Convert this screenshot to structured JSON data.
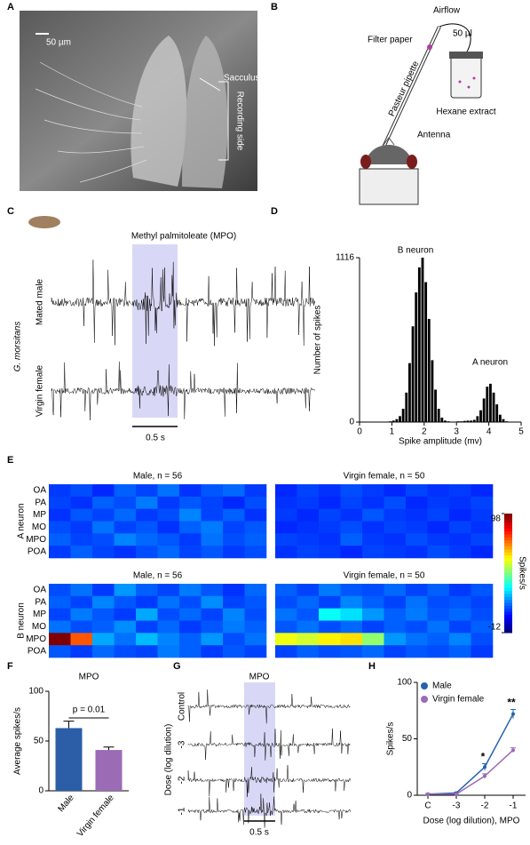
{
  "panel_labels": [
    "A",
    "B",
    "C",
    "D",
    "E",
    "F",
    "G",
    "H"
  ],
  "panel_a": {
    "scale_bar": "50 µm",
    "sacculus": "Sacculus",
    "recording_side": "Recording side"
  },
  "panel_b": {
    "airflow": "Airflow",
    "filter_paper": "Filter paper",
    "volume": "50 µl",
    "pipette": "Pasteur pipette",
    "extract": "Hexane extract",
    "antenna": "Antenna"
  },
  "panel_c": {
    "species": "G. morsitans",
    "stimulus": "Methyl palmitoleate (MPO)",
    "traces": [
      "Mated male",
      "Virgin female"
    ],
    "scale": "0.5 s"
  },
  "panel_g": {
    "stimulus": "MPO",
    "axis_label": "Dose (log dilution)",
    "traces": [
      "Control",
      "-3",
      "-2",
      "-1"
    ],
    "scale": "0.5 s"
  },
  "chart_data": [
    {
      "type": "histogram",
      "bins": [
        0.9,
        1.0,
        1.1,
        1.2,
        1.3,
        1.4,
        1.5,
        1.6,
        1.7,
        1.8,
        1.9,
        2.0,
        2.1,
        2.2,
        2.3,
        2.4,
        2.5,
        2.6,
        2.7,
        2.8,
        2.9,
        3.0,
        3.1,
        3.2,
        3.3,
        3.4,
        3.5,
        3.6,
        3.7,
        3.8,
        3.9,
        4.0,
        4.1,
        4.2,
        4.3,
        4.4,
        4.5,
        4.6
      ],
      "values": [
        5,
        10,
        20,
        40,
        90,
        200,
        400,
        650,
        880,
        1050,
        1116,
        950,
        700,
        420,
        220,
        90,
        30,
        10,
        5,
        3,
        3,
        5,
        5,
        8,
        10,
        10,
        15,
        40,
        80,
        160,
        240,
        260,
        200,
        120,
        50,
        20,
        5
      ],
      "color": "#000000",
      "xlim": [
        0,
        5
      ],
      "xticks": [
        0,
        1,
        2,
        3,
        4,
        5
      ],
      "ylim": [
        0,
        1116
      ],
      "yticks": [
        0,
        1116
      ],
      "xlabel": "Spike amplitude (mv)",
      "ylabel": "Number of spikes",
      "annotations": [
        "B neuron",
        "A neuron"
      ]
    },
    {
      "type": "heatmap",
      "row_labels": [
        "OA",
        "PA",
        "MP",
        "MO",
        "MPO",
        "POA"
      ],
      "neuron_labels": [
        "A neuron",
        "B neuron"
      ],
      "zlim": [
        -12,
        98
      ],
      "zticks": [
        98,
        -12
      ],
      "zlabel": "Spikes/s",
      "panels": [
        {
          "title": "Male, n = 56",
          "values": [
            [
              8,
              10,
              6,
              12,
              9,
              14,
              7,
              11,
              13,
              8
            ],
            [
              9,
              7,
              12,
              10,
              15,
              8,
              11,
              9,
              6,
              10
            ],
            [
              7,
              11,
              9,
              13,
              8,
              10,
              16,
              9,
              12,
              7
            ],
            [
              10,
              8,
              14,
              9,
              11,
              7,
              12,
              15,
              9,
              11
            ],
            [
              12,
              9,
              10,
              16,
              13,
              11,
              8,
              14,
              10,
              12
            ],
            [
              8,
              12,
              9,
              7,
              10,
              13,
              9,
              11,
              8,
              10
            ]
          ]
        },
        {
          "title": "Virgin female, n = 50",
          "values": [
            [
              6,
              9,
              7,
              10,
              8,
              6,
              9,
              7,
              8,
              6
            ],
            [
              7,
              8,
              6,
              9,
              7,
              10,
              6,
              8,
              7,
              9
            ],
            [
              8,
              6,
              9,
              7,
              11,
              8,
              7,
              9,
              6,
              8
            ],
            [
              6,
              7,
              8,
              10,
              7,
              9,
              8,
              6,
              9,
              7
            ],
            [
              9,
              8,
              7,
              12,
              8,
              7,
              10,
              8,
              7,
              9
            ],
            [
              7,
              9,
              8,
              6,
              9,
              8,
              7,
              10,
              8,
              6
            ]
          ]
        },
        {
          "title": "Male, n = 56",
          "values": [
            [
              10,
              14,
              8,
              18,
              12,
              9,
              15,
              11,
              7,
              13
            ],
            [
              12,
              9,
              16,
              11,
              8,
              14,
              10,
              17,
              9,
              11
            ],
            [
              9,
              15,
              11,
              8,
              20,
              10,
              13,
              9,
              16,
              10
            ],
            [
              14,
              10,
              12,
              17,
              9,
              13,
              8,
              11,
              15,
              12
            ],
            [
              98,
              75,
              20,
              14,
              22,
              16,
              12,
              18,
              10,
              14
            ],
            [
              11,
              8,
              13,
              10,
              9,
              15,
              12,
              8,
              11,
              9
            ]
          ]
        },
        {
          "title": "Virgin female, n = 50",
          "values": [
            [
              12,
              9,
              15,
              11,
              10,
              13,
              9,
              12,
              8,
              11
            ],
            [
              10,
              13,
              9,
              16,
              12,
              9,
              14,
              10,
              11,
              9
            ],
            [
              14,
              11,
              30,
              26,
              18,
              12,
              15,
              11,
              13,
              10
            ],
            [
              11,
              14,
              10,
              13,
              9,
              12,
              10,
              14,
              9,
              12
            ],
            [
              55,
              52,
              58,
              60,
              45,
              18,
              14,
              12,
              16,
              10
            ],
            [
              9,
              12,
              10,
              11,
              13,
              9,
              11,
              10,
              12,
              8
            ]
          ]
        }
      ]
    },
    {
      "type": "bar",
      "title": "MPO",
      "categories": [
        "Male",
        "Virgin female"
      ],
      "values": [
        63,
        41
      ],
      "errors": [
        7,
        3
      ],
      "colors": [
        "#2b5ea7",
        "#9b6bb5"
      ],
      "ylim": [
        0,
        100
      ],
      "yticks": [
        0,
        50,
        100
      ],
      "ylabel": "Average spikes/s",
      "annotation": "p = 0.01"
    },
    {
      "type": "line",
      "categories": [
        "C",
        "-3",
        "-2",
        "-1"
      ],
      "series": [
        {
          "name": "Male",
          "color": "#2463ad",
          "values": [
            1,
            2,
            25,
            72
          ],
          "errors": [
            0.5,
            0.5,
            3,
            4
          ]
        },
        {
          "name": "Virgin female",
          "color": "#9b6bb5",
          "values": [
            1,
            1,
            17,
            40
          ],
          "errors": [
            0.5,
            0.5,
            2,
            2
          ]
        }
      ],
      "ylim": [
        0,
        100
      ],
      "yticks": [
        0,
        50,
        100
      ],
      "xlabel": "Dose (log dilution), MPO",
      "ylabel": "Spikes/s",
      "significance": [
        null,
        null,
        "*",
        "**"
      ]
    }
  ]
}
